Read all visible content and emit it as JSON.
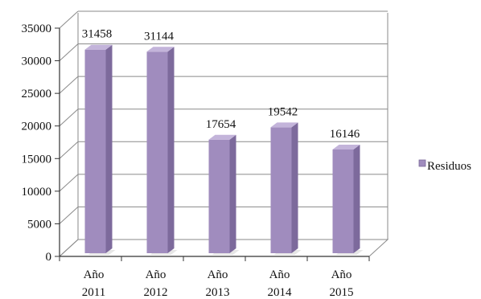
{
  "chart_data": {
    "type": "bar",
    "style": "3d-column",
    "categories": [
      [
        "Año",
        "2011"
      ],
      [
        "Año",
        "2012"
      ],
      [
        "Año",
        "2013"
      ],
      [
        "Año",
        "2014"
      ],
      [
        "Año",
        "2015"
      ]
    ],
    "series": [
      {
        "name": "Residuos",
        "values": [
          31458,
          31144,
          17654,
          19542,
          16146
        ],
        "color": "#a08cbe"
      }
    ],
    "y_ticks": [
      0,
      5000,
      10000,
      15000,
      20000,
      25000,
      30000,
      35000
    ],
    "ylim": [
      0,
      35000
    ],
    "grid": true,
    "data_labels": true,
    "legend": {
      "position": "right"
    }
  }
}
